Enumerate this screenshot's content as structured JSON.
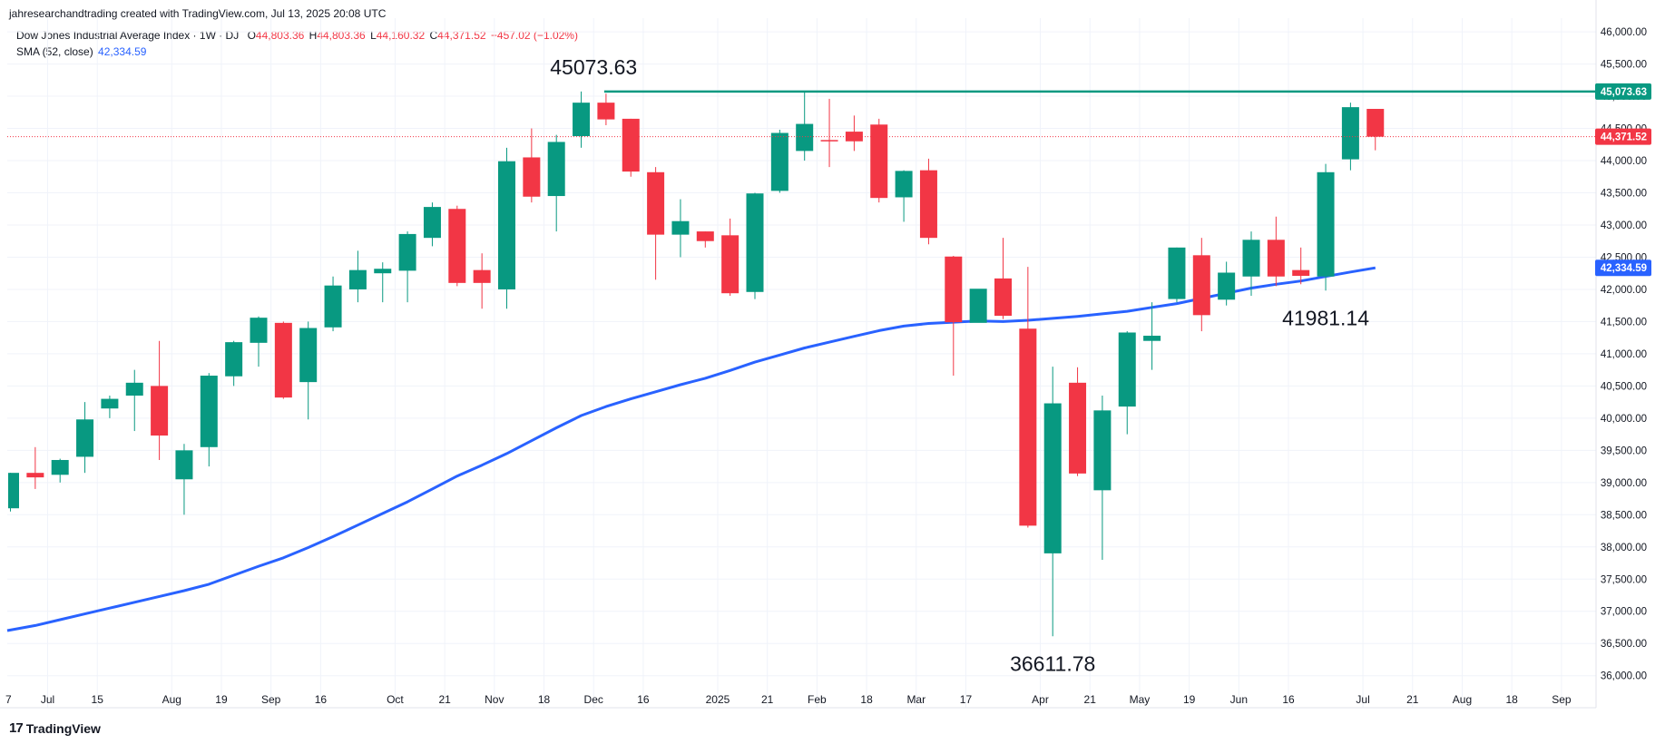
{
  "header": {
    "attribution": "jahresearchandtrading created with TradingView.com, Jul 13, 2025 20:08 UTC"
  },
  "legend": {
    "symbol_title": "Dow Jones Industrial Average Index · 1W · DJ",
    "ohlc": {
      "o_label": "O",
      "o_value": "44,803.36",
      "h_label": "H",
      "h_value": "44,803.36",
      "l_label": "L",
      "l_value": "44,160.32",
      "c_label": "C",
      "c_value": "44,371.52",
      "change": "−457.02 (−1.02%)"
    },
    "sma_label": "SMA (52, close)",
    "sma_value": "42,334.59"
  },
  "footer": {
    "brand": "TradingView",
    "logo_icon": "tradingview-logo-icon"
  },
  "colors": {
    "up": "#089981",
    "down": "#f23645",
    "sma": "#2962ff",
    "resistance": "#089981",
    "grid": "#f0f3fa",
    "axis_text": "#131722"
  },
  "chart_data": {
    "type": "candlestick",
    "title": "Dow Jones Industrial Average Index · 1W · DJ",
    "ylim": [
      35800,
      46000
    ],
    "y_ticks": [
      36000,
      36500,
      37000,
      37500,
      38000,
      38500,
      39000,
      39500,
      40000,
      40500,
      41000,
      41500,
      42000,
      42500,
      43000,
      43500,
      44000,
      44500,
      45000,
      45500,
      46000
    ],
    "y_tick_labels": [
      "36,000.00",
      "36,500.00",
      "37,000.00",
      "37,500.00",
      "38,000.00",
      "38,500.00",
      "39,000.00",
      "39,500.00",
      "40,000.00",
      "40,500.00",
      "41,000.00",
      "41,500.00",
      "42,000.00",
      "42,500.00",
      "43,000.00",
      "43,500.00",
      "44,000.00",
      "44,500.00",
      "45,000.00",
      "45,500.00",
      "46,000.00"
    ],
    "x_ticks": [
      {
        "i": 1.5,
        "label": "Jul"
      },
      {
        "i": 3.5,
        "label": "15"
      },
      {
        "i": 6.5,
        "label": "Aug"
      },
      {
        "i": 8.5,
        "label": "19"
      },
      {
        "i": 10.5,
        "label": "Sep"
      },
      {
        "i": 12.5,
        "label": "16"
      },
      {
        "i": 15.5,
        "label": "Oct"
      },
      {
        "i": 17.5,
        "label": "21"
      },
      {
        "i": 19.5,
        "label": "Nov"
      },
      {
        "i": 21.5,
        "label": "18"
      },
      {
        "i": 23.5,
        "label": "Dec"
      },
      {
        "i": 25.5,
        "label": "16"
      },
      {
        "i": 28.5,
        "label": "2025"
      },
      {
        "i": 30.5,
        "label": "21"
      },
      {
        "i": 32.5,
        "label": "Feb"
      },
      {
        "i": 34.5,
        "label": "18"
      },
      {
        "i": 36.5,
        "label": "Mar"
      },
      {
        "i": 38.5,
        "label": "17"
      },
      {
        "i": 41.5,
        "label": "Apr"
      },
      {
        "i": 43.5,
        "label": "21"
      },
      {
        "i": 45.5,
        "label": "May"
      },
      {
        "i": 47.5,
        "label": "19"
      },
      {
        "i": 49.5,
        "label": "Jun"
      },
      {
        "i": 51.5,
        "label": "16"
      },
      {
        "i": 54.5,
        "label": "Jul"
      },
      {
        "i": 56.5,
        "label": "21"
      },
      {
        "i": 58.5,
        "label": "Aug"
      },
      {
        "i": 60.5,
        "label": "18"
      },
      {
        "i": 62.5,
        "label": "Sep"
      }
    ],
    "candles": [
      [
        38600,
        39150,
        38550,
        39150
      ],
      [
        39150,
        39550,
        38900,
        39080
      ],
      [
        39120,
        39370,
        39000,
        39350
      ],
      [
        39400,
        40250,
        39150,
        39980
      ],
      [
        40150,
        40350,
        40000,
        40300
      ],
      [
        40350,
        40750,
        39800,
        40550
      ],
      [
        40500,
        41200,
        39350,
        39730
      ],
      [
        39050,
        39600,
        38500,
        39500
      ],
      [
        39550,
        40700,
        39250,
        40660
      ],
      [
        40650,
        41200,
        40500,
        41180
      ],
      [
        41170,
        41580,
        40800,
        41560
      ],
      [
        41480,
        41500,
        40300,
        40320
      ],
      [
        40560,
        41500,
        39980,
        41400
      ],
      [
        41410,
        42200,
        41350,
        42060
      ],
      [
        42000,
        42600,
        41800,
        42300
      ],
      [
        42250,
        42420,
        41800,
        42320
      ],
      [
        42290,
        42900,
        41800,
        42860
      ],
      [
        42800,
        43350,
        42670,
        43280
      ],
      [
        43250,
        43300,
        42050,
        42100
      ],
      [
        42300,
        42560,
        41700,
        42100
      ],
      [
        42000,
        44200,
        41700,
        43990
      ],
      [
        44050,
        44500,
        43350,
        43440
      ],
      [
        43450,
        44400,
        42900,
        44290
      ],
      [
        44380,
        45073.63,
        44200,
        44900
      ],
      [
        44900,
        45040,
        44550,
        44640
      ],
      [
        44650,
        44650,
        43750,
        43830
      ],
      [
        43820,
        43900,
        42150,
        42850
      ],
      [
        42850,
        43400,
        42500,
        43060
      ],
      [
        42900,
        42900,
        42650,
        42750
      ],
      [
        42840,
        43100,
        41900,
        41940
      ],
      [
        41960,
        43500,
        41850,
        43490
      ],
      [
        43530,
        44480,
        43500,
        44430
      ],
      [
        44150,
        45073.63,
        44000,
        44570
      ],
      [
        44320,
        44960,
        43900,
        44300
      ],
      [
        44450,
        44700,
        44150,
        44300
      ],
      [
        44560,
        44650,
        43350,
        43420
      ],
      [
        43430,
        43850,
        43050,
        43840
      ],
      [
        43850,
        44030,
        42700,
        42800
      ],
      [
        42510,
        42520,
        40660,
        41490
      ],
      [
        41480,
        42000,
        41500,
        42010
      ],
      [
        42170,
        42800,
        41540,
        41590
      ],
      [
        41390,
        42350,
        38300,
        38330
      ],
      [
        37900,
        40800,
        36611.78,
        40230
      ],
      [
        40550,
        40790,
        39100,
        39140
      ],
      [
        38880,
        40350,
        37800,
        40120
      ],
      [
        40180,
        41350,
        39750,
        41330
      ],
      [
        41200,
        41800,
        40750,
        41280
      ],
      [
        41850,
        42650,
        41800,
        42650
      ],
      [
        42530,
        42800,
        41350,
        41600
      ],
      [
        41840,
        42430,
        41750,
        42260
      ],
      [
        42200,
        42900,
        41900,
        42770
      ],
      [
        42770,
        43130,
        42050,
        42200
      ],
      [
        42300,
        42650,
        42080,
        42210
      ],
      [
        42200,
        43950,
        41981.14,
        43820
      ],
      [
        44020,
        44900,
        43850,
        44830
      ],
      [
        44803.36,
        44803.36,
        44160.32,
        44371.52
      ]
    ],
    "sma_52": [
      36700,
      36780,
      36870,
      36960,
      37050,
      37140,
      37230,
      37320,
      37420,
      37560,
      37700,
      37830,
      37990,
      38160,
      38340,
      38520,
      38700,
      38900,
      39100,
      39270,
      39450,
      39650,
      39850,
      40040,
      40180,
      40300,
      40410,
      40520,
      40620,
      40740,
      40870,
      40980,
      41090,
      41180,
      41270,
      41360,
      41430,
      41470,
      41490,
      41510,
      41500,
      41520,
      41550,
      41580,
      41620,
      41660,
      41720,
      41780,
      41860,
      41940,
      42020,
      42080,
      42130,
      42200,
      42270,
      42334.59
    ],
    "current_price": 44371.52,
    "current_price_label": "44,371.52",
    "sma_last_label": "42,334.59",
    "resistance": {
      "value": 45073.63,
      "label": "45,073.63",
      "from_index": 24
    },
    "annotations": [
      {
        "text": "45073.63",
        "i": 23.5,
        "y": 45073.63,
        "pos": "above"
      },
      {
        "text": "36611.78",
        "i": 42,
        "y": 36611.78,
        "pos": "below"
      },
      {
        "text": "41981.14",
        "i": 53,
        "y": 41981.14,
        "pos": "below"
      }
    ]
  }
}
